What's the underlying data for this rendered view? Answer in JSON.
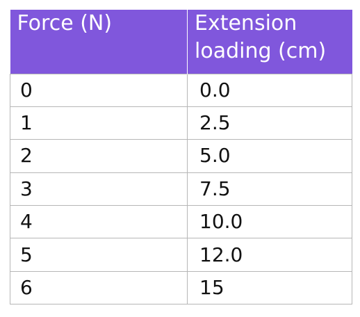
{
  "table": {
    "headers": [
      "Force (N)",
      "Extension loading (cm)"
    ],
    "rows": [
      [
        "0",
        "0.0"
      ],
      [
        "1",
        "2.5"
      ],
      [
        "2",
        "5.0"
      ],
      [
        "3",
        "7.5"
      ],
      [
        "4",
        "10.0"
      ],
      [
        "5",
        "12.0"
      ],
      [
        "6",
        "15"
      ]
    ]
  },
  "colors": {
    "header_background": "#8057dc",
    "header_text": "#ffffff",
    "grid_lines": "#b6b6b6"
  }
}
